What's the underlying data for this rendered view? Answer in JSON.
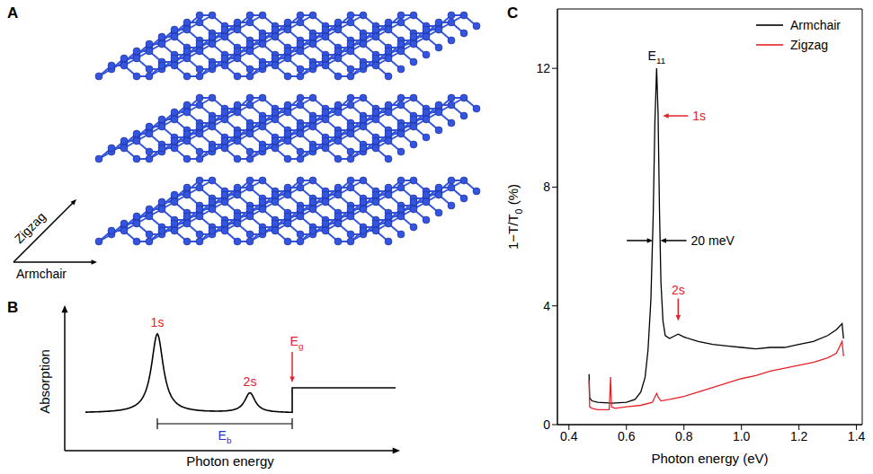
{
  "panel_A": {
    "letter": "A",
    "axes": {
      "zigzag": "Zigzag",
      "armchair": "Armchair"
    },
    "color": "#3355dd"
  },
  "panel_B": {
    "letter": "B",
    "ylabel": "Absorption",
    "xlabel": "Photon energy",
    "peak_labels": [
      "1s",
      "2s"
    ],
    "gap_label": [
      {
        "t": "E"
      },
      {
        "t": "g",
        "sub": true
      }
    ],
    "binding_label": [
      {
        "t": "E"
      },
      {
        "t": "b",
        "sub": true
      }
    ],
    "label_color": "#e8202a",
    "binding_color": "#2233cc"
  },
  "panel_C": {
    "letter": "C"
  },
  "chart_data": {
    "type": "line",
    "xlabel": "Photon energy (eV)",
    "ylabel": [
      {
        "t": "1−T/T"
      },
      {
        "t": "0",
        "sub": true
      },
      {
        "t": " (%)"
      }
    ],
    "xlim": [
      0.36,
      1.42
    ],
    "xticks": [
      0.4,
      0.6,
      0.8,
      {
        "value": 1,
        "label": "1.0"
      },
      1.2,
      1.4
    ],
    "ylim": [
      0,
      14
    ],
    "yticks": [
      0,
      4,
      8,
      12
    ],
    "legend": "top-right",
    "series": [
      {
        "name": "Armchair",
        "color": "#000000",
        "x": [
          0.47,
          0.472,
          0.48,
          0.5,
          0.55,
          0.6,
          0.63,
          0.65,
          0.665,
          0.675,
          0.685,
          0.693,
          0.699,
          0.705,
          0.71,
          0.715,
          0.72,
          0.727,
          0.735,
          0.75,
          0.77,
          0.78,
          0.8,
          0.85,
          0.9,
          0.95,
          1.0,
          1.05,
          1.1,
          1.15,
          1.2,
          1.25,
          1.3,
          1.33,
          1.35,
          1.355
        ],
        "values": [
          1.7,
          0.9,
          0.8,
          0.75,
          0.72,
          0.75,
          0.85,
          1.1,
          1.6,
          2.5,
          4.2,
          7.0,
          10.2,
          12.0,
          10.5,
          7.2,
          4.8,
          3.5,
          3.0,
          2.9,
          3.0,
          3.05,
          2.95,
          2.8,
          2.7,
          2.65,
          2.6,
          2.55,
          2.6,
          2.6,
          2.7,
          2.8,
          3.0,
          3.2,
          3.4,
          2.9
        ]
      },
      {
        "name": "Zigzag",
        "color": "#e8202a",
        "x": [
          0.47,
          0.472,
          0.48,
          0.5,
          0.54,
          0.545,
          0.548,
          0.56,
          0.6,
          0.65,
          0.69,
          0.7,
          0.705,
          0.712,
          0.72,
          0.75,
          0.8,
          0.85,
          0.9,
          0.95,
          1.0,
          1.05,
          1.1,
          1.15,
          1.2,
          1.25,
          1.3,
          1.33,
          1.35,
          1.355
        ],
        "values": [
          1.5,
          0.6,
          0.55,
          0.5,
          0.5,
          1.6,
          0.6,
          0.55,
          0.6,
          0.65,
          0.75,
          0.95,
          1.05,
          0.9,
          0.8,
          0.85,
          0.95,
          1.1,
          1.25,
          1.4,
          1.55,
          1.65,
          1.8,
          1.9,
          2.0,
          2.1,
          2.25,
          2.4,
          2.8,
          2.3
        ]
      }
    ],
    "annotations": [
      {
        "kind": "peak",
        "text": [
          {
            "t": "E"
          },
          {
            "t": "11",
            "sub": true
          }
        ],
        "x": 0.705,
        "y": 12.0,
        "color": "#000000"
      },
      {
        "kind": "arrow_left",
        "text": [
          {
            "t": "1s"
          }
        ],
        "x": 0.714,
        "y": 10.4,
        "color": "#e8202a"
      },
      {
        "kind": "arrow_down",
        "text": [
          {
            "t": "2s"
          }
        ],
        "x": 0.78,
        "y": 3.4,
        "color": "#e8202a"
      }
    ],
    "width_marker": {
      "from": 0.695,
      "to": 0.715,
      "y": 6.2,
      "label": "20 meV"
    }
  }
}
